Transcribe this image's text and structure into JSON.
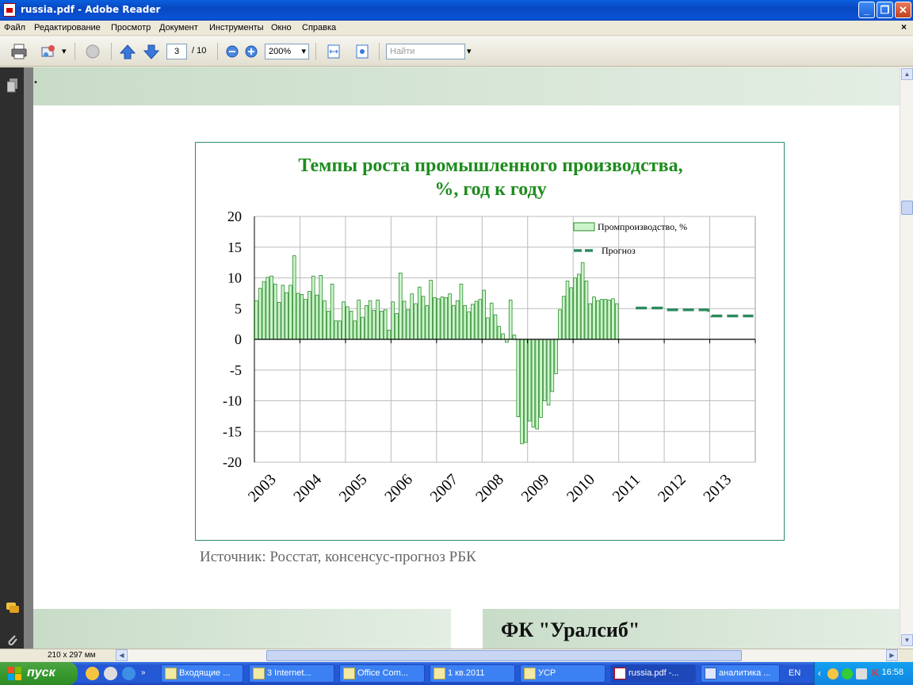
{
  "window": {
    "title": "russia.pdf - Adobe Reader"
  },
  "menu": [
    "Файл",
    "Редактирование",
    "Просмотр",
    "Документ",
    "Инструменты",
    "Окно",
    "Справка"
  ],
  "toolbar": {
    "page_current": "3",
    "page_total": "/ 10",
    "zoom": "200%",
    "search_placeholder": "Найти"
  },
  "document": {
    "partial_top_text": ".",
    "source_text": "Источник: Росстат, консенсус-прогноз РБК",
    "org_title": "ФК \"Уралсиб\""
  },
  "chart_data": {
    "type": "bar",
    "title_line1": "Темпы роста промышленного производства,",
    "title_line2": "%, год к году",
    "ylim": [
      -20,
      20
    ],
    "y_ticks": [
      "20",
      "15",
      "10",
      "5",
      "0",
      "-5",
      "-10",
      "-15",
      "-20"
    ],
    "x_ticks": [
      "2003",
      "2004",
      "2005",
      "2006",
      "2007",
      "2008",
      "2009",
      "2010",
      "2011",
      "2012",
      "2013"
    ],
    "grid": true,
    "legend_position": "top-right",
    "colors": {
      "bars": "#ccf5cc",
      "bar_edge": "#2e8b2e",
      "forecast": "#2e8b5e",
      "title": "#1e8c1e"
    },
    "series": [
      {
        "name": "Промпроизводство, %",
        "start": "2003-01",
        "values": [
          6.3,
          8.3,
          9.4,
          10.1,
          10.3,
          9.0,
          6.0,
          8.8,
          7.6,
          8.8,
          13.6,
          7.5,
          7.3,
          6.5,
          7.8,
          10.3,
          7.2,
          10.4,
          6.3,
          4.6,
          9.0,
          3.0,
          3.0,
          6.1,
          5.3,
          4.6,
          3.0,
          6.4,
          3.6,
          5.5,
          6.3,
          4.7,
          6.4,
          4.6,
          4.8,
          1.5,
          6.1,
          4.2,
          10.8,
          6.2,
          4.8,
          7.4,
          5.8,
          8.5,
          7.0,
          5.5,
          9.6,
          6.8,
          6.6,
          6.9,
          6.8,
          7.4,
          5.5,
          6.3,
          9.0,
          5.5,
          4.5,
          5.7,
          6.2,
          6.5,
          8.0,
          3.5,
          5.9,
          4.0,
          2.1,
          0.9,
          -0.5,
          6.4,
          0.7,
          -12.6,
          -17.0,
          -16.8,
          -13.3,
          -14.3,
          -14.6,
          -12.7,
          -10.0,
          -10.7,
          -8.5,
          -5.6,
          4.8,
          7.0,
          9.5,
          8.4,
          10.0,
          10.6,
          12.5,
          9.5,
          5.8,
          6.9,
          6.3,
          6.5,
          6.5,
          6.4,
          6.6,
          5.8
        ]
      },
      {
        "name": "Прогноз",
        "kind": "dashed-line",
        "points": [
          [
            "2011-05",
            5.1
          ],
          [
            "2011-12",
            5.1
          ],
          [
            "2012-01",
            4.8
          ],
          [
            "2012-12",
            4.8
          ],
          [
            "2013-01",
            3.8
          ],
          [
            "2013-12",
            3.8
          ]
        ]
      }
    ]
  },
  "statusbar": {
    "page_size": "210 x 297 мм"
  },
  "taskbar": {
    "start_label": "пуск",
    "tasks": [
      {
        "label": "Входящие ..."
      },
      {
        "label": "3 Internet..."
      },
      {
        "label": "Office Com..."
      },
      {
        "label": "1 кв.2011"
      },
      {
        "label": "УСР"
      },
      {
        "label": "russia.pdf -..."
      },
      {
        "label": "аналитика ..."
      }
    ],
    "lang": "EN",
    "clock": "16:58"
  }
}
